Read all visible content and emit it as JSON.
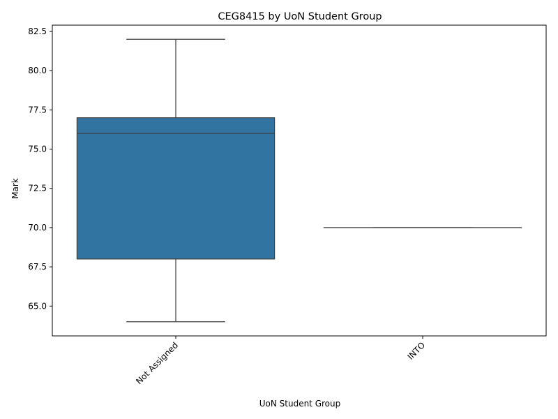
{
  "chart_data": {
    "type": "box",
    "title": "CEG8415 by UoN Student Group",
    "xlabel": "UoN Student Group",
    "ylabel": "Mark",
    "ylim": [
      63.1,
      82.9
    ],
    "yticks": [
      65.0,
      67.5,
      70.0,
      72.5,
      75.0,
      77.5,
      80.0,
      82.5
    ],
    "ytick_labels": [
      "65.0",
      "67.5",
      "70.0",
      "72.5",
      "75.0",
      "77.5",
      "80.0",
      "82.5"
    ],
    "categories": [
      "Not Assigned",
      "INTO"
    ],
    "boxes": [
      {
        "category": "Not Assigned",
        "whisker_low": 64,
        "q1": 68,
        "median": 76,
        "q3": 77,
        "whisker_high": 82
      },
      {
        "category": "INTO",
        "whisker_low": 70,
        "q1": 70,
        "median": 70,
        "q3": 70,
        "whisker_high": 70
      }
    ],
    "colors": {
      "box_fill": "#3274a1",
      "line": "#3d3d3d"
    },
    "grid": false,
    "legend": "none"
  }
}
